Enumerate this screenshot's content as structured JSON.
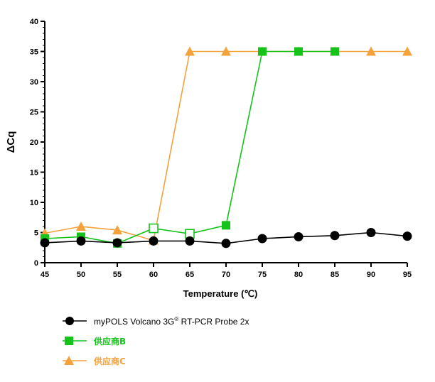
{
  "chart_data": {
    "type": "line",
    "xlabel": "Temperature (℃)",
    "ylabel": "ΔCq",
    "x": [
      45,
      50,
      55,
      60,
      65,
      70,
      75,
      80,
      85,
      90,
      95
    ],
    "xlim": [
      45,
      95
    ],
    "ylim": [
      0,
      40
    ],
    "x_ticks": [
      "45",
      "50",
      "55",
      "60",
      "65",
      "70",
      "75",
      "80",
      "85",
      "90",
      "95"
    ],
    "y_ticks": [
      "0",
      "5",
      "10",
      "15",
      "20",
      "25",
      "30",
      "35",
      "40"
    ],
    "grid": false,
    "legend_position": "bottom-left",
    "series": [
      {
        "name": "myPOLS Volcano 3G® RT-PCR Probe 2x",
        "legend_main": "myPOLS Volcano 3G",
        "legend_sup": "®",
        "legend_rest": " RT-PCR Probe 2x",
        "color": "#000000",
        "marker": "circle",
        "x": [
          45,
          50,
          55,
          60,
          65,
          70,
          75,
          80,
          85,
          90,
          95
        ],
        "values": [
          3.3,
          3.6,
          3.3,
          3.6,
          3.6,
          3.2,
          4.0,
          4.3,
          4.5,
          5.0,
          4.4
        ]
      },
      {
        "name": "供应商B",
        "color": "#15c31a",
        "marker": "square",
        "x": [
          45,
          50,
          55,
          60,
          65,
          70,
          75,
          80,
          85
        ],
        "values": [
          4.0,
          4.3,
          3.2,
          5.7,
          4.8,
          6.2,
          35,
          35,
          35
        ],
        "hollow": [
          false,
          false,
          false,
          true,
          true,
          false,
          false,
          false,
          false
        ]
      },
      {
        "name": "供应商C",
        "color": "#f5a23c",
        "marker": "triangle",
        "x": [
          45,
          50,
          55,
          60,
          65,
          70,
          75,
          80,
          85,
          90,
          95
        ],
        "values": [
          4.9,
          6.0,
          5.4,
          3.7,
          35,
          35,
          35,
          35,
          35,
          35,
          35
        ]
      }
    ]
  }
}
